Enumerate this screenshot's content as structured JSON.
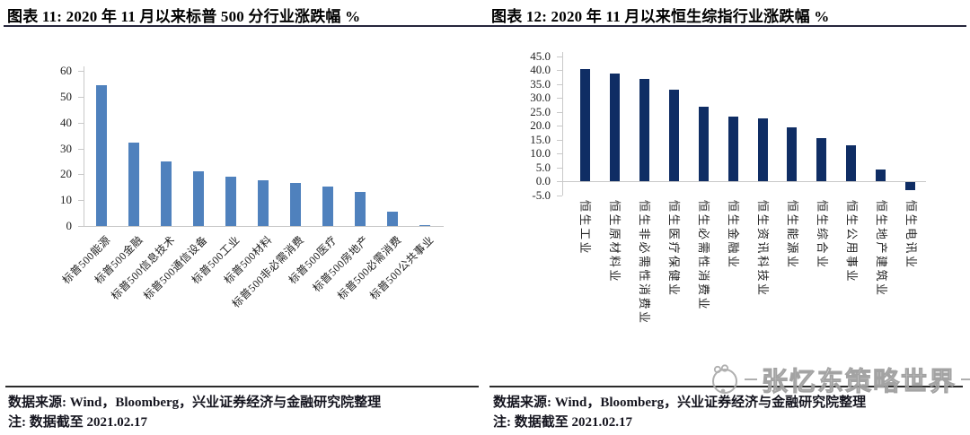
{
  "figures": [
    {
      "label": "left-figure",
      "source": "数据来源: Wind，Bloomberg，兴业证券经济与金融研究院整理",
      "note": "注: 数据截至 2021.02.17"
    },
    {
      "label": "right-figure",
      "source": "数据来源: Wind，Bloomberg，兴业证券经济与金融研究院整理",
      "note": "注: 数据截至 2021.02.17"
    }
  ],
  "watermark": {
    "text": "张忆东策略世界",
    "logo": "cat-face-icon"
  },
  "colors": {
    "sp500_bar": "#4f81bd",
    "hsci_bar": "#0f2d64",
    "axis": "#c9c9c9",
    "rule": "#26263c",
    "footer_text": "#15151f",
    "watermark": "#9f9f9f"
  },
  "chart_data": [
    {
      "type": "bar",
      "title": "图表 11: 2020 年 11 月以来标普 500 分行业涨跌幅  %",
      "categories": [
        "标普500能源",
        "标普500金融",
        "标普500信息技术",
        "标普500通信设备",
        "标普500工业",
        "标普500材料",
        "标普500非必需消费",
        "标普500医疗",
        "标普500房地产",
        "标普500必需消费",
        "标普500公共事业"
      ],
      "values": [
        54.6,
        32.2,
        25.1,
        21.1,
        19.1,
        17.6,
        16.7,
        15.3,
        13.1,
        5.6,
        0.2
      ],
      "xlabel": "",
      "ylabel": "",
      "ylim": [
        0,
        60
      ],
      "yticks": [
        0,
        10,
        20,
        30,
        40,
        50,
        60
      ],
      "grid": false,
      "legend": "none",
      "bar_color": "#4f81bd",
      "x_label_rotation": -45
    },
    {
      "type": "bar",
      "title": "图表 12: 2020 年 11 月以来恒生综指行业涨跌幅  %",
      "categories": [
        "恒生工业",
        "恒生原材料业",
        "恒生非必需性消费业",
        "恒生医疗保健业",
        "恒生必需性消费业",
        "恒生金融业",
        "恒生资讯科技业",
        "恒生能源业",
        "恒生综合业",
        "恒生公用事业",
        "恒生地产建筑业",
        "恒生电讯业"
      ],
      "values": [
        40.4,
        38.8,
        36.7,
        33.0,
        26.9,
        23.2,
        22.5,
        19.2,
        15.6,
        12.8,
        4.3,
        -2.9
      ],
      "xlabel": "",
      "ylabel": "",
      "ylim": [
        -5,
        45
      ],
      "yticks": [
        45,
        40,
        35,
        30,
        25,
        20,
        15,
        10,
        5,
        0,
        -5
      ],
      "grid": false,
      "legend": "none",
      "bar_color": "#0f2d64",
      "x_label_rotation": 90
    }
  ]
}
